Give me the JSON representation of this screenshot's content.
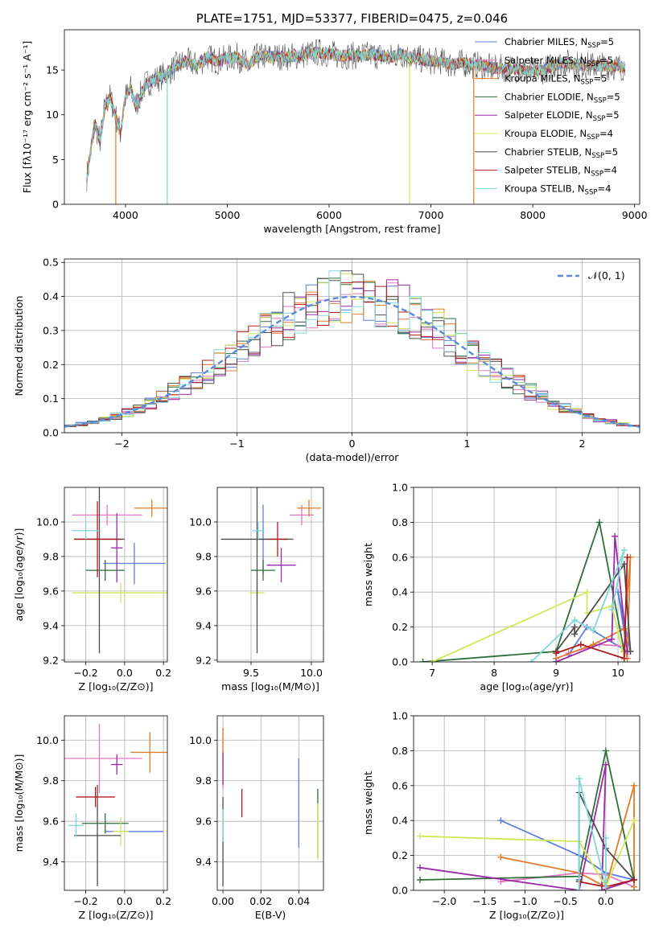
{
  "colors": {
    "Chabrier MILES": "#5b7fdc",
    "Salpeter MILES": "#e377c2",
    "Kroupa MILES": "#e07c2a",
    "Chabrier ELODIE": "#2e6e3a",
    "Salpeter ELODIE": "#9b2ca8",
    "Kroupa ELODIE": "#cfe85a",
    "Chabrier STELIB": "#4d4d4d",
    "Salpeter STELIB": "#b01a1a",
    "Kroupa STELIB": "#7fd8d8",
    "gauss": "#5b8bd8"
  },
  "chart_data": [
    {
      "id": "spectrum",
      "type": "line",
      "title": "PLATE=1751, MJD=53377, FIBERID=0475, z=0.046",
      "xlabel": "wavelength [Angstrom, rest frame]",
      "ylabel": "Flux [fλ10⁻¹⁷ erg cm⁻² s⁻¹ A⁻¹]",
      "xlim": [
        3400,
        9050
      ],
      "ylim": [
        0,
        19.5
      ],
      "xticks": [
        4000,
        5000,
        6000,
        7000,
        8000,
        9000
      ],
      "yticks": [
        0,
        5,
        10,
        15
      ],
      "legend_position": "top-right",
      "legend": [
        {
          "text": "Chabrier MILES, N",
          "sub": "SSP",
          "tail": "=5",
          "series": "Chabrier MILES"
        },
        {
          "text": "Salpeter MILES, N",
          "sub": "SSP",
          "tail": "=5",
          "series": "Salpeter MILES"
        },
        {
          "text": "Kroupa MILES, N",
          "sub": "SSP",
          "tail": "=5",
          "series": "Kroupa MILES"
        },
        {
          "text": "Chabrier ELODIE, N",
          "sub": "SSP",
          "tail": "=5",
          "series": "Chabrier ELODIE"
        },
        {
          "text": "Salpeter ELODIE, N",
          "sub": "SSP",
          "tail": "=5",
          "series": "Salpeter ELODIE"
        },
        {
          "text": "Kroupa ELODIE, N",
          "sub": "SSP",
          "tail": "=4",
          "series": "Kroupa ELODIE"
        },
        {
          "text": "Chabrier STELIB, N",
          "sub": "SSP",
          "tail": "=5",
          "series": "Chabrier STELIB"
        },
        {
          "text": "Salpeter STELIB, N",
          "sub": "SSP",
          "tail": "=4",
          "series": "Salpeter STELIB"
        },
        {
          "text": "Kroupa STELIB, N",
          "sub": "SSP",
          "tail": "=4",
          "series": "Kroupa STELIB"
        }
      ],
      "envelope": [
        [
          3620,
          3
        ],
        [
          3700,
          9
        ],
        [
          3750,
          7
        ],
        [
          3800,
          11
        ],
        [
          3850,
          12
        ],
        [
          3900,
          10
        ],
        [
          3950,
          8
        ],
        [
          4000,
          12
        ],
        [
          4050,
          13
        ],
        [
          4100,
          11
        ],
        [
          4200,
          13.5
        ],
        [
          4300,
          14
        ],
        [
          4400,
          14.5
        ],
        [
          4500,
          15.5
        ],
        [
          4600,
          16
        ],
        [
          4700,
          15.5
        ],
        [
          4800,
          16.5
        ],
        [
          4900,
          16
        ],
        [
          5000,
          16.3
        ],
        [
          5100,
          16.5
        ],
        [
          5200,
          15.5
        ],
        [
          5300,
          16.5
        ],
        [
          5400,
          16.5
        ],
        [
          5500,
          16.5
        ],
        [
          5600,
          16.5
        ],
        [
          5700,
          16.6
        ],
        [
          5800,
          16.8
        ],
        [
          5900,
          17
        ],
        [
          6000,
          16.8
        ],
        [
          6100,
          16.6
        ],
        [
          6200,
          16.6
        ],
        [
          6300,
          16.6
        ],
        [
          6400,
          16.7
        ],
        [
          6500,
          16.6
        ],
        [
          6600,
          16.4
        ],
        [
          6700,
          16.8
        ],
        [
          6800,
          16.4
        ],
        [
          6900,
          16.2
        ],
        [
          7000,
          16
        ],
        [
          7100,
          16
        ],
        [
          7200,
          15.6
        ],
        [
          7300,
          15.8
        ],
        [
          7400,
          15.6
        ],
        [
          7500,
          15.5
        ],
        [
          7600,
          15.2
        ],
        [
          7700,
          15.2
        ],
        [
          7800,
          15.2
        ],
        [
          7900,
          15
        ],
        [
          8000,
          14.8
        ],
        [
          8100,
          15
        ],
        [
          8200,
          15.5
        ],
        [
          8300,
          15.8
        ],
        [
          8400,
          15.7
        ],
        [
          8500,
          15.5
        ],
        [
          8600,
          15.5
        ],
        [
          8700,
          15.5
        ],
        [
          8800,
          15.4
        ],
        [
          8900,
          15.3
        ]
      ],
      "dips": [
        {
          "x": 3905,
          "y": 0,
          "series": "Kroupa MILES"
        },
        {
          "x": 4410,
          "y": 0,
          "series": "Kroupa STELIB"
        },
        {
          "x": 6790,
          "y": 0,
          "series": "Kroupa ELODIE"
        },
        {
          "x": 7420,
          "y": 0,
          "series": "Kroupa MILES"
        }
      ]
    },
    {
      "id": "residuals",
      "type": "step",
      "xlabel": "(data-model)/error",
      "ylabel": "Normed distribution",
      "xlim": [
        -2.5,
        2.5
      ],
      "ylim": [
        0,
        0.51
      ],
      "xticks": [
        -2,
        -1,
        0,
        1,
        2
      ],
      "yticks": [
        0.0,
        0.1,
        0.2,
        0.3,
        0.4,
        0.5
      ],
      "legend_position": "top-right",
      "legend_text": "𝒩(0, 1)",
      "bin_width": 0.1,
      "gaussian": {
        "mu": 0,
        "sigma": 1
      }
    },
    {
      "id": "age-vs-Z",
      "type": "errorbar",
      "xlabel": "Z [log₁₀(Z/Z⊙)]",
      "ylabel": "age  [log₁₀(age/yr)]",
      "xlim": [
        -0.31,
        0.22
      ],
      "ylim": [
        9.19,
        10.2
      ],
      "xticks": [
        -0.2,
        0.0,
        0.2
      ],
      "yticks": [
        9.2,
        9.4,
        9.6,
        9.8,
        10.0
      ],
      "points": [
        {
          "series": "Chabrier MILES",
          "x": 0.05,
          "xerr": 0.16,
          "y": 9.76,
          "yerr": 0.12
        },
        {
          "series": "Salpeter MILES",
          "x": -0.09,
          "xerr": 0.18,
          "y": 10.04,
          "yerr": 0.06
        },
        {
          "series": "Kroupa MILES",
          "x": 0.14,
          "xerr": 0.09,
          "y": 10.08,
          "yerr": 0.05
        },
        {
          "series": "Chabrier ELODIE",
          "x": -0.1,
          "xerr": 0.1,
          "y": 9.72,
          "yerr": 0.06
        },
        {
          "series": "Salpeter ELODIE",
          "x": -0.04,
          "xerr": 0.03,
          "y": 9.85,
          "yerr": 0.2
        },
        {
          "series": "Kroupa ELODIE",
          "x": -0.02,
          "xerr": 0.25,
          "y": 9.59,
          "yerr": 0.06
        },
        {
          "series": "Chabrier STELIB",
          "x": -0.13,
          "xerr": 0.13,
          "y": 9.9,
          "yerr": 0.66
        },
        {
          "series": "Salpeter STELIB",
          "x": -0.14,
          "xerr": 0.12,
          "y": 9.9,
          "yerr": 0.22
        },
        {
          "series": "Kroupa STELIB",
          "x": -0.2,
          "xerr": 0.07,
          "y": 9.95,
          "yerr": 0.05
        }
      ]
    },
    {
      "id": "age-vs-mass",
      "type": "errorbar",
      "xlabel": "mass [log₁₀(M/M⊙)]",
      "ylabel": "",
      "xlim": [
        9.22,
        10.1
      ],
      "ylim": [
        9.19,
        10.2
      ],
      "xticks": [
        9.5,
        10.0
      ],
      "yticks": [
        9.2,
        9.4,
        9.6,
        9.8,
        10.0
      ],
      "points": [
        {
          "series": "Chabrier MILES",
          "x": 9.6,
          "xerr": 0.05,
          "y": 9.9,
          "yerr": 0.2
        },
        {
          "series": "Salpeter MILES",
          "x": 9.92,
          "xerr": 0.1,
          "y": 10.04,
          "yerr": 0.06
        },
        {
          "series": "Kroupa MILES",
          "x": 9.98,
          "xerr": 0.1,
          "y": 10.08,
          "yerr": 0.05
        },
        {
          "series": "Chabrier ELODIE",
          "x": 9.6,
          "xerr": 0.1,
          "y": 9.72,
          "yerr": 0.06
        },
        {
          "series": "Salpeter ELODIE",
          "x": 9.75,
          "xerr": 0.12,
          "y": 9.75,
          "yerr": 0.1
        },
        {
          "series": "Kroupa ELODIE",
          "x": 9.55,
          "xerr": 0.06,
          "y": 9.59,
          "yerr": 0.06
        },
        {
          "series": "Chabrier STELIB",
          "x": 9.55,
          "xerr": 0.3,
          "y": 9.9,
          "yerr": 0.66
        },
        {
          "series": "Salpeter STELIB",
          "x": 9.72,
          "xerr": 0.08,
          "y": 9.9,
          "yerr": 0.1
        },
        {
          "series": "Kroupa STELIB",
          "x": 9.56,
          "xerr": 0.05,
          "y": 9.95,
          "yerr": 0.05
        }
      ]
    },
    {
      "id": "massweight-vs-age",
      "type": "line",
      "xlabel": "age  [log₁₀(age/yr)]",
      "ylabel": "mass weight",
      "xlim": [
        6.7,
        10.35
      ],
      "ylim": [
        0,
        1.0
      ],
      "xticks": [
        7,
        8,
        9,
        10
      ],
      "yticks": [
        0.0,
        0.2,
        0.4,
        0.6,
        0.8,
        1.0
      ],
      "series": [
        {
          "name": "Chabrier MILES",
          "x": [
            9.2,
            9.5,
            10.15,
            10.0,
            10.2
          ],
          "y": [
            0.04,
            0.2,
            0.06,
            0.4,
            0.06
          ]
        },
        {
          "name": "Salpeter MILES",
          "x": [
            9.2,
            9.7,
            10.1,
            10.15
          ],
          "y": [
            0.05,
            0.1,
            0.09,
            0.02
          ]
        },
        {
          "name": "Kroupa MILES",
          "x": [
            9.0,
            9.6,
            10.1,
            10.2,
            10.15
          ],
          "y": [
            0.02,
            0.1,
            0.19,
            0.6,
            0.02
          ]
        },
        {
          "name": "Chabrier ELODIE",
          "x": [
            6.85,
            9.0,
            9.7,
            10.1
          ],
          "y": [
            0.0,
            0.06,
            0.8,
            0.06
          ]
        },
        {
          "name": "Salpeter ELODIE",
          "x": [
            9.0,
            9.9,
            9.95,
            10.15
          ],
          "y": [
            0.0,
            0.13,
            0.72,
            0.06
          ]
        },
        {
          "name": "Kroupa ELODIE",
          "x": [
            7.0,
            9.5,
            9.5,
            9.9,
            10.1
          ],
          "y": [
            0.0,
            0.4,
            0.28,
            0.32,
            0.02
          ]
        },
        {
          "name": "Chabrier STELIB",
          "x": [
            9.0,
            9.3,
            9.3,
            10.1,
            10.2
          ],
          "y": [
            0.06,
            0.2,
            0.16,
            0.56,
            0.06
          ]
        },
        {
          "name": "Salpeter STELIB",
          "x": [
            9.0,
            9.4,
            10.1,
            10.15
          ],
          "y": [
            0.05,
            0.1,
            0.02,
            0.6
          ]
        },
        {
          "name": "Kroupa STELIB",
          "x": [
            8.6,
            9.3,
            9.6,
            10.1,
            9.9
          ],
          "y": [
            0.0,
            0.24,
            0.18,
            0.64,
            0.3
          ]
        }
      ]
    },
    {
      "id": "mass-vs-Z",
      "type": "errorbar",
      "xlabel": "Z [log₁₀(Z/Z⊙)]",
      "ylabel": "mass [log₁₀(M/M⊙)]",
      "xlim": [
        -0.31,
        0.22
      ],
      "ylim": [
        9.26,
        10.12
      ],
      "xticks": [
        -0.2,
        0.0,
        0.2
      ],
      "yticks": [
        9.4,
        9.6,
        9.8,
        10.0
      ],
      "points": [
        {
          "series": "Chabrier MILES",
          "x": 0.05,
          "xerr": 0.15,
          "y": 9.55,
          "yerr": 0.0
        },
        {
          "series": "Salpeter MILES",
          "x": -0.13,
          "xerr": 0.22,
          "y": 9.91,
          "yerr": 0.17
        },
        {
          "series": "Kroupa MILES",
          "x": 0.13,
          "xerr": 0.1,
          "y": 9.94,
          "yerr": 0.1
        },
        {
          "series": "Chabrier ELODIE",
          "x": -0.1,
          "xerr": 0.12,
          "y": 9.59,
          "yerr": 0.05
        },
        {
          "series": "Salpeter ELODIE",
          "x": -0.04,
          "xerr": 0.03,
          "y": 9.88,
          "yerr": 0.05
        },
        {
          "series": "Kroupa ELODIE",
          "x": -0.02,
          "xerr": 0.04,
          "y": 9.55,
          "yerr": 0.07
        },
        {
          "series": "Chabrier STELIB",
          "x": -0.14,
          "xerr": 0.12,
          "y": 9.53,
          "yerr": 0.25
        },
        {
          "series": "Salpeter STELIB",
          "x": -0.15,
          "xerr": 0.1,
          "y": 9.72,
          "yerr": 0.05
        },
        {
          "series": "Kroupa STELIB",
          "x": -0.25,
          "xerr": 0.04,
          "y": 9.58,
          "yerr": 0.06
        }
      ]
    },
    {
      "id": "mass-vs-ebv",
      "type": "errorbar",
      "xlabel": "E(B-V)",
      "ylabel": "",
      "xlim": [
        -0.003,
        0.053
      ],
      "ylim": [
        9.26,
        10.12
      ],
      "xticks": [
        0.0,
        0.02,
        0.04
      ],
      "yticks": [
        9.4,
        9.6,
        9.8,
        10.0
      ],
      "points": [
        {
          "series": "Chabrier MILES",
          "x": 0.04,
          "xerr": 0,
          "y": 9.69,
          "yerr": 0.22
        },
        {
          "series": "Salpeter MILES",
          "x": 0.0,
          "xerr": 0,
          "y": 9.91,
          "yerr": 0.15
        },
        {
          "series": "Kroupa MILES",
          "x": 0.0,
          "xerr": 0,
          "y": 9.96,
          "yerr": 0.1
        },
        {
          "series": "Chabrier ELODIE",
          "x": 0.05,
          "xerr": 0,
          "y": 9.59,
          "yerr": 0.17
        },
        {
          "series": "Salpeter ELODIE",
          "x": 0.0,
          "xerr": 0,
          "y": 9.86,
          "yerr": 0.08
        },
        {
          "series": "Kroupa ELODIE",
          "x": 0.05,
          "xerr": 0,
          "y": 9.55,
          "yerr": 0.14
        },
        {
          "series": "Chabrier STELIB",
          "x": 0.0,
          "xerr": 0,
          "y": 9.5,
          "yerr": 0.22
        },
        {
          "series": "Salpeter STELIB",
          "x": 0.01,
          "xerr": 0,
          "y": 9.69,
          "yerr": 0.07
        },
        {
          "series": "Kroupa STELIB",
          "x": 0.0,
          "xerr": 0,
          "y": 9.58,
          "yerr": 0.08
        }
      ]
    },
    {
      "id": "massweight-vs-Z",
      "type": "line",
      "xlabel": "Z [log₁₀(Z/Z⊙)]",
      "ylabel": "mass weight",
      "xlim": [
        -2.38,
        0.42
      ],
      "ylim": [
        0,
        1.0
      ],
      "xticks": [
        -2.0,
        -1.5,
        -1.0,
        -0.5,
        0.0
      ],
      "yticks": [
        0.0,
        0.2,
        0.4,
        0.6,
        0.8,
        1.0
      ],
      "series": [
        {
          "name": "Chabrier MILES",
          "x": [
            -1.3,
            -0.33,
            0.0,
            0.35
          ],
          "y": [
            0.4,
            0.2,
            0.1,
            0.06
          ]
        },
        {
          "name": "Salpeter MILES",
          "x": [
            -1.3,
            -0.33,
            0.0,
            0.35
          ],
          "y": [
            0.05,
            0.1,
            0.09,
            0.02
          ]
        },
        {
          "name": "Kroupa MILES",
          "x": [
            -1.3,
            -0.33,
            0.0,
            0.35,
            0.35
          ],
          "y": [
            0.19,
            0.1,
            0.02,
            0.6,
            0.02
          ]
        },
        {
          "name": "Chabrier ELODIE",
          "x": [
            -2.3,
            -0.33,
            0.0,
            0.35
          ],
          "y": [
            0.06,
            0.08,
            0.8,
            0.06
          ]
        },
        {
          "name": "Salpeter ELODIE",
          "x": [
            -2.3,
            -0.33,
            0.0,
            -0.05,
            0.35
          ],
          "y": [
            0.13,
            0.0,
            0.72,
            0.0,
            0.06
          ]
        },
        {
          "name": "Kroupa ELODIE",
          "x": [
            -2.3,
            -0.33,
            0.0,
            0.35
          ],
          "y": [
            0.31,
            0.28,
            0.02,
            0.4
          ]
        },
        {
          "name": "Chabrier STELIB",
          "x": [
            -0.33,
            -0.33,
            0.0,
            0.35
          ],
          "y": [
            0.06,
            0.56,
            0.24,
            0.06
          ]
        },
        {
          "name": "Salpeter STELIB",
          "x": [
            -0.33,
            0.0,
            0.35
          ],
          "y": [
            0.05,
            0.02,
            0.06
          ]
        },
        {
          "name": "Kroupa STELIB",
          "x": [
            -0.33,
            -0.33,
            0.0,
            0.0
          ],
          "y": [
            0.0,
            0.64,
            0.02,
            0.3
          ]
        }
      ]
    }
  ]
}
